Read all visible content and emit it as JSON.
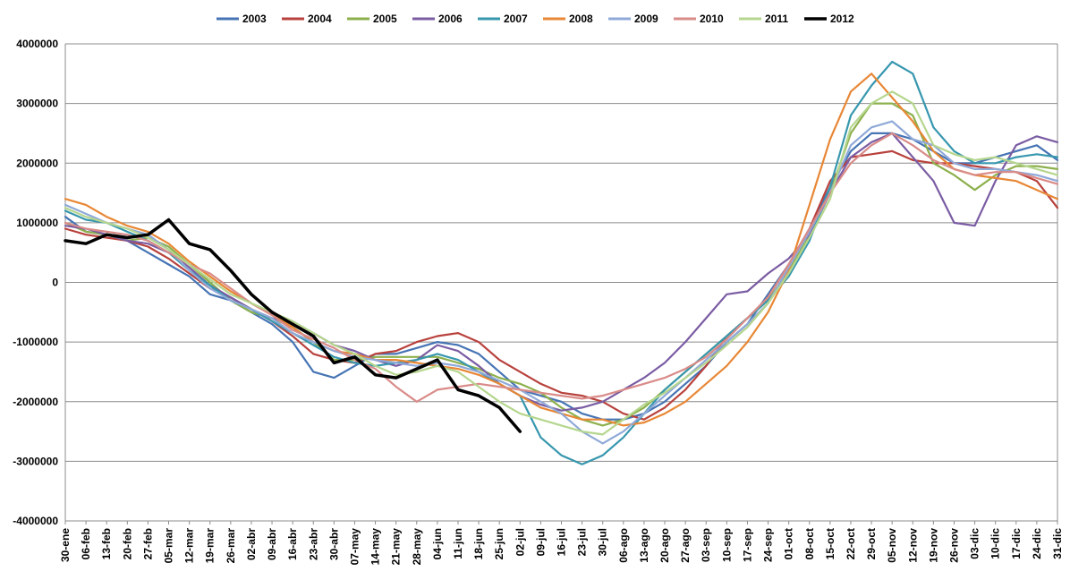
{
  "chart_data": {
    "type": "line",
    "title": "",
    "xlabel": "",
    "ylabel": "",
    "ylim": [
      -4000000,
      4000000
    ],
    "y_ticks": [
      "4000000",
      "3000000",
      "2000000",
      "1000000",
      "0",
      "-1000000",
      "-2000000",
      "-3000000",
      "-4000000"
    ],
    "x_ticks": [
      "30-ene",
      "06-feb",
      "13-feb",
      "20-feb",
      "27-feb",
      "05-mar",
      "12-mar",
      "19-mar",
      "26-mar",
      "02-abr",
      "09-abr",
      "16-abr",
      "23-abr",
      "30-abr",
      "07-may",
      "14-may",
      "21-may",
      "28-may",
      "04-jun",
      "11-jun",
      "18-jun",
      "25-jun",
      "02-jul",
      "09-jul",
      "16-jul",
      "23-jul",
      "30-jul",
      "06-ago",
      "13-ago",
      "20-ago",
      "27-ago",
      "03-sep",
      "10-sep",
      "17-sep",
      "24-sep",
      "01-oct",
      "08-oct",
      "15-oct",
      "22-oct",
      "29-oct",
      "05-nov",
      "12-nov",
      "19-nov",
      "26-nov",
      "03-dic",
      "10-dic",
      "17-dic",
      "24-dic",
      "31-dic"
    ],
    "grid": "horizontal",
    "legend_position": "top",
    "series": [
      {
        "name": "2003",
        "color": "#4674B4",
        "values": [
          1100000,
          850000,
          800000,
          700000,
          500000,
          300000,
          100000,
          -200000,
          -300000,
          -500000,
          -700000,
          -1000000,
          -1500000,
          -1600000,
          -1400000,
          -1200000,
          -1200000,
          -1100000,
          -1000000,
          -1050000,
          -1200000,
          -1500000,
          -1800000,
          -1900000,
          -2000000,
          -2200000,
          -2300000,
          -2300000,
          -2200000,
          -2000000,
          -1700000,
          -1400000,
          -1000000,
          -700000,
          -200000,
          300000,
          900000,
          1600000,
          2200000,
          2500000,
          2500000,
          2400000,
          2200000,
          2000000,
          2000000,
          2100000,
          2200000,
          2300000,
          2050000
        ]
      },
      {
        "name": "2004",
        "color": "#B8413C",
        "values": [
          900000,
          800000,
          750000,
          700000,
          600000,
          400000,
          150000,
          -100000,
          -250000,
          -450000,
          -650000,
          -900000,
          -1200000,
          -1300000,
          -1350000,
          -1200000,
          -1150000,
          -1000000,
          -900000,
          -850000,
          -1000000,
          -1300000,
          -1500000,
          -1700000,
          -1850000,
          -1900000,
          -2000000,
          -2200000,
          -2300000,
          -2100000,
          -1800000,
          -1400000,
          -900000,
          -600000,
          -250000,
          300000,
          900000,
          1700000,
          2100000,
          2150000,
          2200000,
          2050000,
          2000000,
          2000000,
          1950000,
          1900000,
          1850000,
          1700000,
          1250000
        ]
      },
      {
        "name": "2005",
        "color": "#8DB04D",
        "values": [
          1000000,
          850000,
          800000,
          700000,
          750000,
          600000,
          300000,
          0,
          -300000,
          -500000,
          -600000,
          -750000,
          -1000000,
          -1300000,
          -1300000,
          -1250000,
          -1250000,
          -1250000,
          -1250000,
          -1350000,
          -1450000,
          -1600000,
          -1700000,
          -1850000,
          -2100000,
          -2300000,
          -2400000,
          -2300000,
          -2100000,
          -1800000,
          -1500000,
          -1200000,
          -900000,
          -600000,
          -300000,
          200000,
          800000,
          1500000,
          2500000,
          3000000,
          3000000,
          2800000,
          2000000,
          1800000,
          1550000,
          1800000,
          1950000,
          1950000,
          1900000
        ]
      },
      {
        "name": "2006",
        "color": "#7A5CA3",
        "values": [
          950000,
          900000,
          800000,
          700000,
          650000,
          500000,
          250000,
          -50000,
          -250000,
          -450000,
          -600000,
          -700000,
          -850000,
          -1050000,
          -1150000,
          -1300000,
          -1400000,
          -1300000,
          -1050000,
          -1150000,
          -1400000,
          -1700000,
          -1900000,
          -2050000,
          -2150000,
          -2100000,
          -2000000,
          -1800000,
          -1600000,
          -1350000,
          -1000000,
          -600000,
          -200000,
          -150000,
          150000,
          400000,
          800000,
          1500000,
          2100000,
          2350000,
          2500000,
          2100000,
          1700000,
          1000000,
          950000,
          1700000,
          2300000,
          2450000,
          2350000
        ]
      },
      {
        "name": "2007",
        "color": "#3797AE",
        "values": [
          1200000,
          1050000,
          1000000,
          850000,
          700000,
          500000,
          200000,
          -50000,
          -300000,
          -450000,
          -650000,
          -850000,
          -1050000,
          -1250000,
          -1350000,
          -1400000,
          -1350000,
          -1300000,
          -1200000,
          -1300000,
          -1500000,
          -1700000,
          -1900000,
          -2600000,
          -2900000,
          -3050000,
          -2900000,
          -2600000,
          -2200000,
          -1800000,
          -1500000,
          -1200000,
          -900000,
          -600000,
          -300000,
          100000,
          700000,
          1600000,
          2800000,
          3300000,
          3700000,
          3500000,
          2600000,
          2200000,
          2000000,
          2000000,
          2100000,
          2150000,
          2100000
        ]
      },
      {
        "name": "2008",
        "color": "#E88735",
        "values": [
          1400000,
          1300000,
          1100000,
          950000,
          850000,
          650000,
          350000,
          100000,
          -150000,
          -350000,
          -550000,
          -750000,
          -1000000,
          -1150000,
          -1200000,
          -1300000,
          -1300000,
          -1350000,
          -1400000,
          -1450000,
          -1550000,
          -1700000,
          -1900000,
          -2100000,
          -2200000,
          -2300000,
          -2300000,
          -2400000,
          -2350000,
          -2200000,
          -2000000,
          -1700000,
          -1400000,
          -1000000,
          -500000,
          200000,
          1300000,
          2400000,
          3200000,
          3500000,
          3100000,
          2700000,
          2200000,
          1900000,
          1800000,
          1750000,
          1700000,
          1550000,
          1400000
        ]
      },
      {
        "name": "2009",
        "color": "#8FA9D8",
        "values": [
          1300000,
          1150000,
          1000000,
          900000,
          800000,
          550000,
          200000,
          -100000,
          -300000,
          -450000,
          -600000,
          -850000,
          -1000000,
          -1150000,
          -1250000,
          -1300000,
          -1350000,
          -1400000,
          -1350000,
          -1400000,
          -1500000,
          -1650000,
          -1800000,
          -2000000,
          -2200000,
          -2500000,
          -2700000,
          -2500000,
          -2200000,
          -1900000,
          -1600000,
          -1300000,
          -1000000,
          -700000,
          -350000,
          250000,
          850000,
          1500000,
          2300000,
          2600000,
          2700000,
          2400000,
          2300000,
          2000000,
          1900000,
          1900000,
          1850000,
          1800000,
          1700000
        ]
      },
      {
        "name": "2010",
        "color": "#D98B88",
        "values": [
          1000000,
          900000,
          850000,
          800000,
          700000,
          500000,
          300000,
          150000,
          -100000,
          -350000,
          -550000,
          -800000,
          -950000,
          -1100000,
          -1300000,
          -1450000,
          -1750000,
          -2000000,
          -1800000,
          -1750000,
          -1700000,
          -1750000,
          -1800000,
          -1850000,
          -1900000,
          -1950000,
          -1900000,
          -1800000,
          -1700000,
          -1600000,
          -1450000,
          -1250000,
          -950000,
          -600000,
          -250000,
          300000,
          900000,
          1500000,
          2000000,
          2300000,
          2500000,
          2300000,
          2050000,
          1900000,
          1800000,
          1850000,
          1850000,
          1750000,
          1650000
        ]
      },
      {
        "name": "2011",
        "color": "#B5D68E",
        "values": [
          1250000,
          1100000,
          1000000,
          900000,
          750000,
          550000,
          300000,
          50000,
          -200000,
          -350000,
          -500000,
          -650000,
          -850000,
          -1050000,
          -1200000,
          -1400000,
          -1550000,
          -1500000,
          -1400000,
          -1500000,
          -1750000,
          -2000000,
          -2200000,
          -2300000,
          -2400000,
          -2500000,
          -2550000,
          -2300000,
          -2050000,
          -1850000,
          -1600000,
          -1350000,
          -1050000,
          -750000,
          -350000,
          150000,
          750000,
          1400000,
          2600000,
          3000000,
          3200000,
          3000000,
          2300000,
          2150000,
          2050000,
          2100000,
          2000000,
          1900000,
          1800000
        ]
      },
      {
        "name": "2012",
        "color": "#000000",
        "values": [
          700000,
          650000,
          800000,
          750000,
          800000,
          1050000,
          650000,
          550000,
          200000,
          -200000,
          -500000,
          -700000,
          -900000,
          -1350000,
          -1250000,
          -1550000,
          -1600000,
          -1450000,
          -1300000,
          -1800000,
          -1900000,
          -2100000,
          -2500000,
          null,
          null,
          null,
          null,
          null,
          null,
          null,
          null,
          null,
          null,
          null,
          null,
          null,
          null,
          null,
          null,
          null,
          null,
          null,
          null,
          null,
          null,
          null,
          null,
          null,
          null
        ]
      }
    ]
  }
}
